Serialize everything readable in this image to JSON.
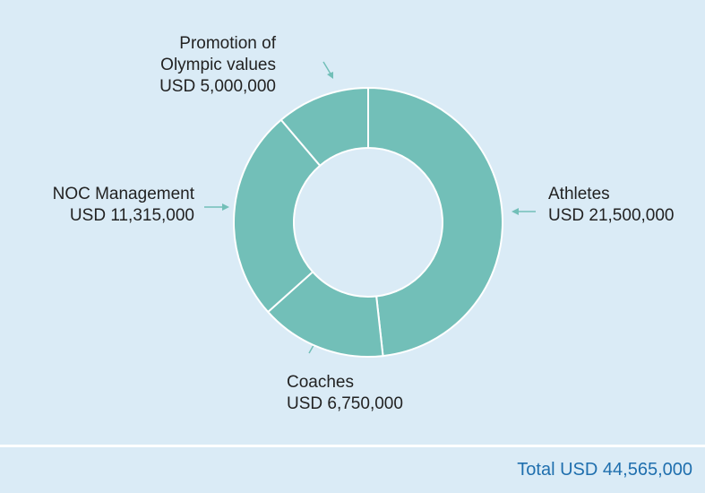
{
  "chart_data": {
    "type": "donut",
    "categories": [
      "Athletes",
      "Coaches",
      "NOC Management",
      "Promotion of Olympic values"
    ],
    "values": [
      21500000,
      6750000,
      11315000,
      5000000
    ],
    "value_labels": [
      "USD 21,500,000",
      "USD 6,750,000",
      "USD 11,315,000",
      "USD 5,000,000"
    ],
    "color": "#72bfb8",
    "total_label": "Total",
    "total": "USD 44,565,000"
  }
}
